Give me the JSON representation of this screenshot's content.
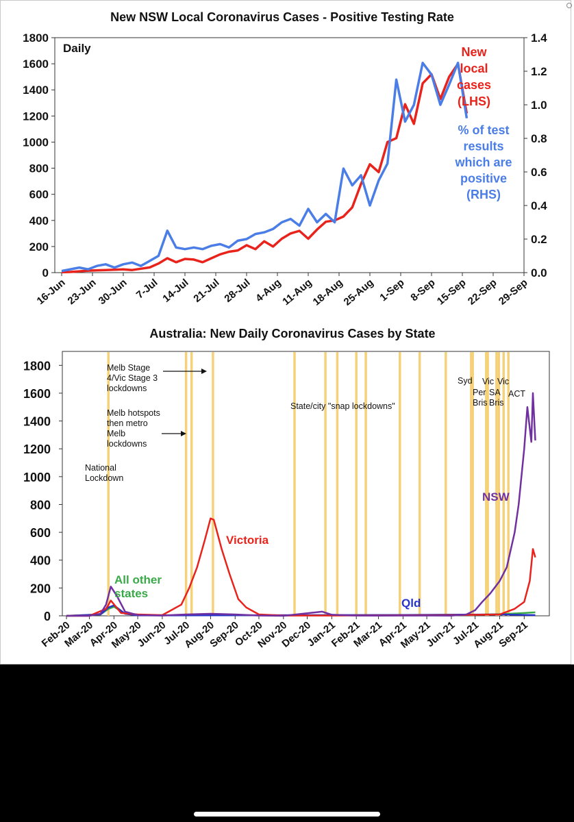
{
  "chart_data": [
    {
      "type": "line",
      "title": "New NSW Local Coronavirus Cases - Positive Testing Rate",
      "corner_label": "Daily",
      "x_tick_labels": [
        "16-Jun",
        "23-Jun",
        "30-Jun",
        "7-Jul",
        "14-Jul",
        "21-Jul",
        "28-Jul",
        "4-Aug",
        "11-Aug",
        "18-Aug",
        "25-Aug",
        "1-Sep",
        "8-Sep",
        "15-Sep",
        "22-Sep",
        "29-Sep"
      ],
      "ylim_left": [
        0,
        1800
      ],
      "y_ticks_left": [
        "0",
        "200",
        "400",
        "600",
        "800",
        "1000",
        "1200",
        "1400",
        "1600",
        "1800"
      ],
      "ylim_right": [
        0,
        1.4
      ],
      "y_ticks_right": [
        "0.0",
        "0.2",
        "0.4",
        "0.6",
        "0.8",
        "1.0",
        "1.2",
        "1.4"
      ],
      "series": [
        {
          "name": "New local cases (LHS)",
          "label_lines": [
            "New",
            "local",
            "cases",
            "(LHS)"
          ],
          "color": "#e8231c",
          "axis": "left",
          "x": [
            "16-Jun",
            "18-Jun",
            "20-Jun",
            "22-Jun",
            "24-Jun",
            "26-Jun",
            "28-Jun",
            "30-Jun",
            "2-Jul",
            "4-Jul",
            "6-Jul",
            "8-Jul",
            "10-Jul",
            "12-Jul",
            "14-Jul",
            "16-Jul",
            "18-Jul",
            "20-Jul",
            "22-Jul",
            "24-Jul",
            "26-Jul",
            "28-Jul",
            "30-Jul",
            "1-Aug",
            "3-Aug",
            "5-Aug",
            "7-Aug",
            "9-Aug",
            "11-Aug",
            "13-Aug",
            "15-Aug",
            "17-Aug",
            "19-Aug",
            "21-Aug",
            "23-Aug",
            "25-Aug",
            "27-Aug",
            "29-Aug",
            "31-Aug",
            "2-Sep",
            "4-Sep",
            "6-Sep",
            "8-Sep",
            "10-Sep",
            "12-Sep",
            "14-Sep",
            "16-Sep"
          ],
          "values": [
            3,
            5,
            10,
            15,
            18,
            20,
            22,
            25,
            20,
            30,
            40,
            70,
            110,
            80,
            105,
            100,
            80,
            110,
            140,
            160,
            170,
            210,
            180,
            240,
            200,
            260,
            300,
            320,
            260,
            330,
            390,
            400,
            430,
            500,
            680,
            830,
            770,
            1000,
            1030,
            1290,
            1140,
            1450,
            1520,
            1330,
            1500,
            1600,
            1220
          ]
        },
        {
          "name": "% of test results which are positive (RHS)",
          "label_lines": [
            "% of test",
            "results",
            "which are",
            "positive",
            "(RHS)"
          ],
          "color": "#4a7de6",
          "axis": "right",
          "x": [
            "16-Jun",
            "18-Jun",
            "20-Jun",
            "22-Jun",
            "24-Jun",
            "26-Jun",
            "28-Jun",
            "30-Jun",
            "2-Jul",
            "4-Jul",
            "6-Jul",
            "8-Jul",
            "10-Jul",
            "12-Jul",
            "14-Jul",
            "16-Jul",
            "18-Jul",
            "20-Jul",
            "22-Jul",
            "24-Jul",
            "26-Jul",
            "28-Jul",
            "30-Jul",
            "1-Aug",
            "3-Aug",
            "5-Aug",
            "7-Aug",
            "9-Aug",
            "11-Aug",
            "13-Aug",
            "15-Aug",
            "17-Aug",
            "19-Aug",
            "21-Aug",
            "23-Aug",
            "25-Aug",
            "27-Aug",
            "29-Aug",
            "31-Aug",
            "2-Sep",
            "4-Sep",
            "6-Sep",
            "8-Sep",
            "10-Sep",
            "12-Sep",
            "14-Sep",
            "16-Sep"
          ],
          "values": [
            0.01,
            0.02,
            0.03,
            0.02,
            0.04,
            0.05,
            0.03,
            0.05,
            0.06,
            0.04,
            0.07,
            0.1,
            0.25,
            0.15,
            0.14,
            0.15,
            0.14,
            0.16,
            0.17,
            0.15,
            0.19,
            0.2,
            0.23,
            0.24,
            0.26,
            0.3,
            0.32,
            0.28,
            0.38,
            0.3,
            0.35,
            0.3,
            0.62,
            0.52,
            0.58,
            0.4,
            0.55,
            0.65,
            1.15,
            0.9,
            1.0,
            1.25,
            1.18,
            1.0,
            1.12,
            1.25,
            0.92
          ]
        }
      ]
    },
    {
      "type": "line",
      "title": "Australia: New Daily Coronavirus Cases by State",
      "x_tick_labels": [
        "Feb-20",
        "Mar-20",
        "Apr-20",
        "May-20",
        "Jun-20",
        "Jul-20",
        "Aug-20",
        "Sep-20",
        "Oct-20",
        "Nov-20",
        "Dec-20",
        "Jan-21",
        "Feb-21",
        "Mar-21",
        "Apr-21",
        "May-21",
        "Jun-21",
        "Jul-21",
        "Aug-21",
        "Sep-21"
      ],
      "ylim": [
        0,
        1900
      ],
      "y_ticks": [
        "0",
        "200",
        "400",
        "600",
        "800",
        "1000",
        "1200",
        "1400",
        "1600",
        "1800"
      ],
      "series": [
        {
          "name": "NSW",
          "color": "#7030a0",
          "x": [
            "1-Feb-20",
            "1-Mar-20",
            "15-Mar-20",
            "22-Mar-20",
            "28-Mar-20",
            "5-Apr-20",
            "15-Apr-20",
            "1-May-20",
            "1-Jun-20",
            "1-Jul-20",
            "1-Aug-20",
            "1-Sep-20",
            "1-Oct-20",
            "1-Nov-20",
            "20-Dec-20",
            "1-Jan-21",
            "1-Feb-21",
            "1-Mar-21",
            "1-Apr-21",
            "1-May-21",
            "1-Jun-21",
            "20-Jun-21",
            "1-Jul-21",
            "10-Jul-21",
            "20-Jul-21",
            "1-Aug-21",
            "10-Aug-21",
            "20-Aug-21",
            "25-Aug-21",
            "1-Sep-21",
            "5-Sep-21",
            "10-Sep-21",
            "12-Sep-21",
            "15-Sep-21"
          ],
          "values": [
            0,
            0,
            15,
            80,
            210,
            140,
            30,
            5,
            2,
            10,
            15,
            10,
            2,
            0,
            30,
            8,
            2,
            1,
            2,
            2,
            1,
            10,
            40,
            100,
            160,
            250,
            350,
            600,
            800,
            1200,
            1500,
            1250,
            1600,
            1260
          ]
        },
        {
          "name": "Victoria",
          "color": "#e8231c",
          "x": [
            "1-Feb-20",
            "1-Mar-20",
            "22-Mar-20",
            "28-Mar-20",
            "10-Apr-20",
            "1-May-20",
            "1-Jun-20",
            "25-Jun-20",
            "5-Jul-20",
            "15-Jul-20",
            "25-Jul-20",
            "1-Aug-20",
            "5-Aug-20",
            "15-Aug-20",
            "25-Aug-20",
            "5-Sep-20",
            "15-Sep-20",
            "1-Oct-20",
            "1-Nov-20",
            "1-Jan-21",
            "1-Jun-21",
            "1-Aug-21",
            "20-Aug-21",
            "1-Sep-21",
            "8-Sep-21",
            "12-Sep-21",
            "15-Sep-21"
          ],
          "values": [
            0,
            0,
            50,
            110,
            20,
            10,
            5,
            80,
            200,
            350,
            550,
            700,
            690,
            480,
            300,
            120,
            60,
            10,
            2,
            2,
            5,
            10,
            50,
            100,
            250,
            480,
            420
          ]
        },
        {
          "name": "All other states",
          "label_lines": [
            "All other",
            "states"
          ],
          "color": "#3aaa48",
          "x": [
            "1-Feb-20",
            "15-Mar-20",
            "25-Mar-20",
            "1-Apr-20",
            "15-Apr-20",
            "1-May-20",
            "1-Jan-21",
            "1-Jul-21",
            "1-Aug-21",
            "1-Sep-21",
            "15-Sep-21"
          ],
          "values": [
            0,
            10,
            50,
            65,
            15,
            5,
            3,
            8,
            12,
            20,
            25
          ]
        },
        {
          "name": "Qld",
          "color": "#2533c8",
          "x": [
            "1-Feb-20",
            "15-Mar-20",
            "25-Mar-20",
            "1-Apr-20",
            "15-Apr-20",
            "1-May-20",
            "1-Apr-21",
            "1-Aug-21",
            "15-Sep-21"
          ],
          "values": [
            0,
            10,
            60,
            75,
            15,
            3,
            6,
            10,
            5
          ]
        }
      ],
      "lockdown_lines": [
        "25-Mar-20",
        "1-Jul-20",
        "8-Jul-20",
        "4-Aug-20",
        "15-Nov-20",
        "24-Dec-20",
        "8-Jan-21",
        "1-Feb-21",
        "13-Feb-21",
        "28-Mar-21",
        "22-Apr-21",
        "25-May-21",
        "26-Jun-21",
        "28-Jun-21",
        "15-Jul-21",
        "17-Jul-21",
        "28-Jul-21",
        "31-Jul-21",
        "6-Aug-21",
        "12-Aug-21"
      ],
      "lockdown_color": "#f5d27a",
      "annotations": [
        {
          "lines": [
            "Melb Stage",
            "4/Vic Stage 3",
            "lockdowns"
          ],
          "arrow": true
        },
        {
          "lines": [
            "Melb hotspots",
            "then metro",
            "Melb",
            "lockdowns"
          ],
          "arrow": true
        },
        {
          "lines": [
            "National",
            "Lockdown"
          ]
        },
        {
          "lines": [
            "State/city \"snap lockdowns\""
          ]
        },
        {
          "lines": [
            "Syd"
          ]
        },
        {
          "lines": [
            "Per",
            "Bris"
          ]
        },
        {
          "lines": [
            "Vic"
          ]
        },
        {
          "lines": [
            "SA",
            "Bris"
          ]
        },
        {
          "lines": [
            "Vic"
          ]
        },
        {
          "lines": [
            "ACT"
          ]
        }
      ]
    }
  ]
}
